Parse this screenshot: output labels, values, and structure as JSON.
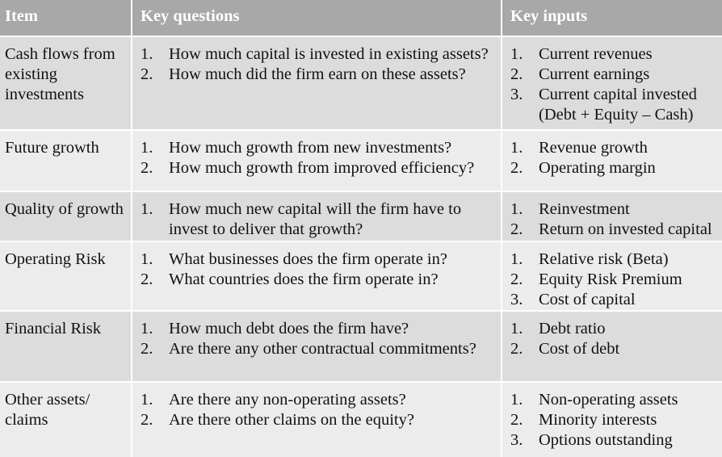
{
  "headers": [
    "Item",
    "Key questions",
    "Key inputs"
  ],
  "rows": [
    {
      "item": "Cash flows from existing investments",
      "questions": [
        "How much capital is invested in existing assets?",
        "How much did the firm earn on these assets?"
      ],
      "inputs": [
        "Current revenues",
        "Current earnings",
        "Current capital invested (Debt + Equity – Cash)"
      ]
    },
    {
      "item": "Future growth",
      "questions": [
        "How much growth from new investments?",
        "How much growth from improved efficiency?"
      ],
      "inputs": [
        "Revenue growth",
        "Operating margin"
      ]
    },
    {
      "item": "Quality of growth",
      "questions": [
        "How much new capital will the firm have to invest to deliver that growth?"
      ],
      "inputs": [
        "Reinvestment",
        "Return on invested capital"
      ]
    },
    {
      "item": "Operating Risk",
      "questions": [
        "What businesses does the firm operate in?",
        "What countries does the firm operate in?"
      ],
      "inputs": [
        "Relative risk (Beta)",
        "Equity Risk Premium",
        "Cost of capital"
      ]
    },
    {
      "item": "Financial Risk",
      "questions": [
        "How much debt does the firm have?",
        "Are there any other contractual commitments?"
      ],
      "inputs": [
        "Debt ratio",
        "Cost of debt"
      ]
    },
    {
      "item": "Other assets/ claims",
      "questions": [
        "Are there any non-operating assets?",
        "Are there other claims on the equity?"
      ],
      "inputs": [
        "Non-operating assets",
        "Minority interests",
        "Options outstanding"
      ]
    }
  ]
}
